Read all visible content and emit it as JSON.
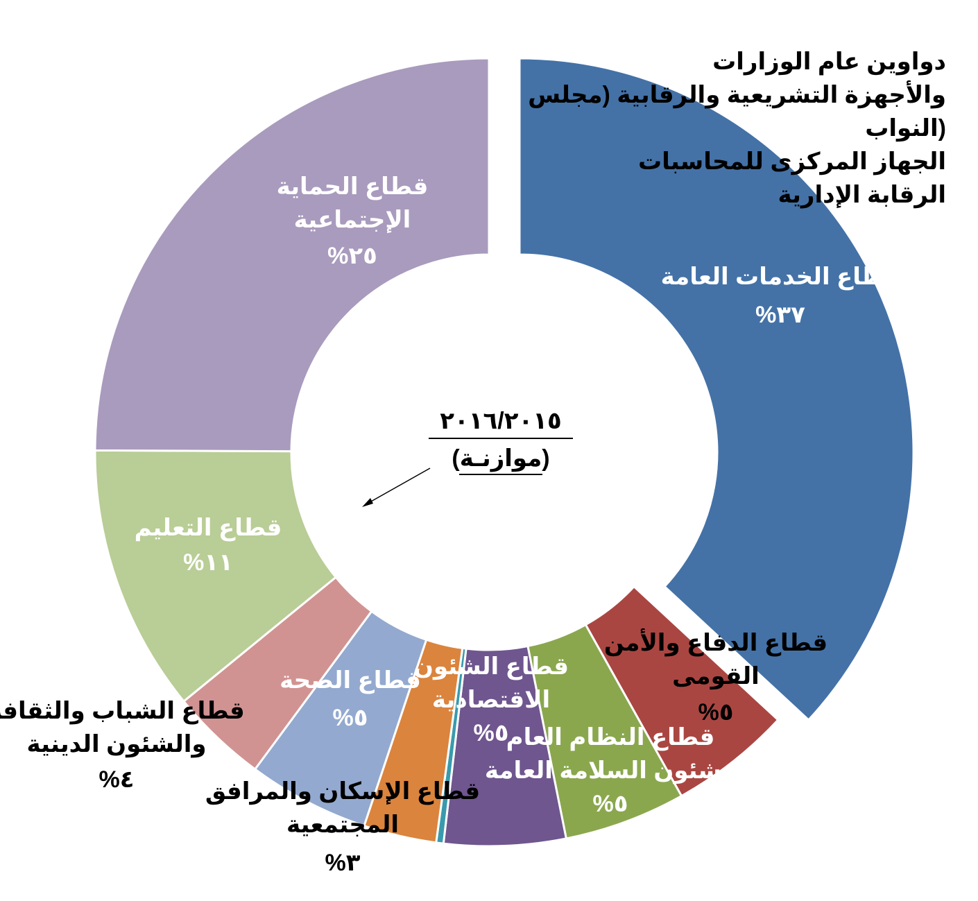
{
  "chart_data": {
    "type": "pie",
    "variant": "donut",
    "center_title": "٢٠١٦/٢٠١٥",
    "center_subtitle": "(موازنـة)",
    "slices": [
      {
        "name": "قطاع الخدمات العامة",
        "label_lines": [
          "قطاع الخدمات العامة"
        ],
        "pct_text": "%٣٧",
        "value": 37,
        "color": "#4472a7",
        "label_color": "#ffffff"
      },
      {
        "name": "قطاع الدفاع والأمن القومى",
        "label_lines": [
          "قطاع الدفاع والأمن",
          "القومى"
        ],
        "pct_text": "%٥",
        "value": 5,
        "color": "#aa4642",
        "label_color": "#000000"
      },
      {
        "name": "قطاع النظام العام وشئون السلامة العامة",
        "label_lines": [
          "قطاع النظام العام",
          "وشئون السلامة العامة"
        ],
        "pct_text": "%٥",
        "value": 5,
        "color": "#8aa74e",
        "label_color": "#ffffff"
      },
      {
        "name": "قطاع الشئون الاقتصادية",
        "label_lines": [
          "قطاع الشئون",
          "الاقتصادية"
        ],
        "pct_text": "%٥",
        "value": 5,
        "color": "#6f568f",
        "label_color": "#ffffff"
      },
      {
        "name": "",
        "label_lines": [],
        "pct_text": "",
        "value": 0.3,
        "color": "#3a9aad",
        "label_color": "#ffffff"
      },
      {
        "name": "قطاع الإسكان والمرافق المجتمعية",
        "label_lines": [
          "قطاع الإسكان والمرافق",
          "المجتمعية"
        ],
        "pct_text": "%٣",
        "value": 3,
        "color": "#db843d",
        "label_color": "#000000"
      },
      {
        "name": "قطاع الصحة",
        "label_lines": [
          "قطاع الصحة"
        ],
        "pct_text": "%٥",
        "value": 5,
        "color": "#93a9cf",
        "label_color": "#ffffff"
      },
      {
        "name": "قطاع الشباب والثقافة والشئون الدينية",
        "label_lines": [
          "قطاع الشباب والثقافة",
          "والشئون الدينية"
        ],
        "pct_text": "%٤",
        "value": 4,
        "color": "#d19392",
        "label_color": "#000000"
      },
      {
        "name": "قطاع التعليم",
        "label_lines": [
          "قطاع التعليم"
        ],
        "pct_text": "%١١",
        "value": 11,
        "color": "#b9cd96",
        "label_color": "#ffffff"
      },
      {
        "name": "قطاع الحماية الإجتماعية",
        "label_lines": [
          "قطاع الحماية",
          "الإجتماعية"
        ],
        "pct_text": "%٢٥",
        "value": 25,
        "color": "#a99bbd",
        "label_color": "#ffffff"
      }
    ],
    "exploded_slice": "قطاع الخدمات العامة",
    "annotation_lines": [
      "دواوين عام الوزارات",
      "والأجهزة التشريعية والرقابية (مجلس",
      "النواب)",
      "الجهاز المركزى للمحاسبات",
      "الرقابة الإدارية"
    ]
  }
}
